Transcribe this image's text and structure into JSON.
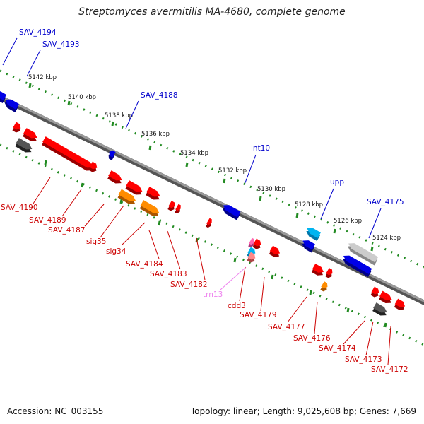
{
  "title": "Streptomyces avermitilis MA-4680, complete genome",
  "accession": "Accession: NC_003155",
  "topology": "Topology: linear; Length: 9,025,608 bp; Genes: 7,669",
  "colors": {
    "forward": "#0000e6",
    "forward_light": "#00b4f0",
    "reverse": "#ff0000",
    "orange": "#ff8c00",
    "gray": "#555555",
    "light_gray": "#cccccc",
    "pink": "#ff69b4",
    "backbone": "#777777",
    "ruler": "#228b22",
    "forward_label": "#0000cc",
    "reverse_label": "#cc0000",
    "trna_label": "#ee82ee"
  },
  "scale_labels": [
    "5142 kbp",
    "5140 kbp",
    "5138 kbp",
    "5136 kbp",
    "5134 kbp",
    "5132 kbp",
    "5130 kbp",
    "5128 kbp",
    "5126 kbp",
    "5124 kbp"
  ],
  "forward_labels": [
    "SAV_4194",
    "SAV_4193",
    "SAV_4188",
    "int10",
    "upp",
    "SAV_4175"
  ],
  "reverse_labels": [
    "SAV_4190",
    "SAV_4189",
    "SAV_4187",
    "sig35",
    "sig34",
    "SAV_4184",
    "SAV_4183",
    "SAV_4182",
    "trn13",
    "cdd3",
    "SAV_4179",
    "SAV_4177",
    "SAV_4176",
    "SAV_4174",
    "SAV_4173",
    "SAV_4172"
  ]
}
